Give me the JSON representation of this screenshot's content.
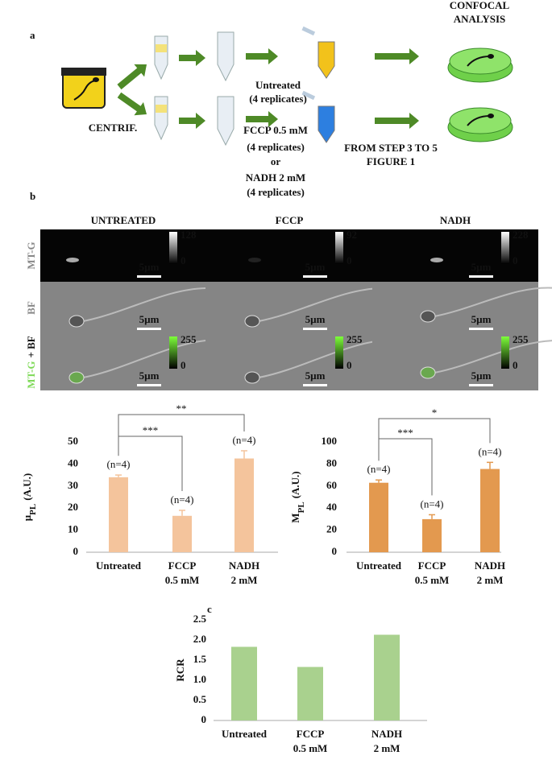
{
  "panel_a": {
    "label": "a",
    "confocal": [
      "CONFOCAL",
      "ANALYSIS"
    ],
    "centrif": "CENTRIF.",
    "untreated": [
      "Untreated",
      "(4 replicates)"
    ],
    "treated": [
      "FCCP 0.5 mM",
      "(4 replicates)",
      "or",
      "NADH 2 mM",
      "(4 replicates)"
    ],
    "steps": [
      "FROM STEP 3 TO 5",
      "FIGURE 1"
    ]
  },
  "panel_b": {
    "label": "b",
    "columns": [
      "UNTREATED",
      "FCCP",
      "NADH"
    ],
    "rows": [
      {
        "label": "MT-G",
        "cells": [
          {
            "max": 128,
            "min": 0,
            "scale": "5µm"
          },
          {
            "max": 92,
            "min": 0,
            "scale": "5µm"
          },
          {
            "max": 228,
            "min": 0,
            "scale": "5µm"
          }
        ]
      },
      {
        "label": "BF",
        "cells": [
          {
            "scale": "5µm"
          },
          {
            "scale": "5µm"
          },
          {
            "scale": "5µm"
          }
        ]
      },
      {
        "label": "MT-G",
        "label_suffix": "+ BF",
        "cells": [
          {
            "max": 255,
            "min": 0,
            "scale": "5µm"
          },
          {
            "max": 255,
            "min": 0,
            "scale": "5µm"
          },
          {
            "max": 255,
            "min": 0,
            "scale": "5µm"
          }
        ]
      }
    ]
  },
  "chart_data": [
    {
      "type": "bar",
      "ylabel": "μ",
      "ylabel_sub": "PL",
      "ylabel_unit": "(A.U.)",
      "categories": [
        [
          "Untreated"
        ],
        [
          "FCCP",
          "0.5 mM"
        ],
        [
          "NADH",
          "2 mM"
        ]
      ],
      "values": [
        34,
        16.5,
        42.5
      ],
      "errors": [
        1,
        2.5,
        3.5
      ],
      "annotations": [
        "(n=4)",
        "(n=4)",
        "(n=4)"
      ],
      "color": "#f4c49c",
      "ylim": [
        0,
        50
      ],
      "yticks": [
        0,
        10,
        20,
        30,
        40,
        50
      ],
      "significance": [
        {
          "from": 0,
          "to": 1,
          "label": "***"
        },
        {
          "from": 0,
          "to": 2,
          "label": "**"
        }
      ]
    },
    {
      "type": "bar",
      "ylabel": "M",
      "ylabel_sub": "PL",
      "ylabel_unit": "(A.U.)",
      "categories": [
        [
          "Untreated"
        ],
        [
          "FCCP",
          "0.5 mM"
        ],
        [
          "NADH",
          "2 mM"
        ]
      ],
      "values": [
        63,
        30,
        75.5
      ],
      "errors": [
        2.5,
        4,
        6
      ],
      "annotations": [
        "(n=4)",
        "(n=4)",
        "(n=4)"
      ],
      "color": "#e3994f",
      "ylim": [
        0,
        100
      ],
      "yticks": [
        0,
        20,
        40,
        60,
        80,
        100
      ],
      "significance": [
        {
          "from": 0,
          "to": 1,
          "label": "***"
        },
        {
          "from": 0,
          "to": 2,
          "label": "*"
        }
      ]
    },
    {
      "type": "bar",
      "panel_label": "c",
      "ylabel": "RCR",
      "categories": [
        [
          "Untreated"
        ],
        [
          "FCCP",
          "0.5 mM"
        ],
        [
          "NADH",
          "2 mM"
        ]
      ],
      "values": [
        1.83,
        1.33,
        2.13
      ],
      "color": "#a9d18e",
      "ylim": [
        0,
        2.5
      ],
      "yticks": [
        0,
        0.5,
        {
          "value": 1,
          "label": "1.0"
        },
        1.5,
        {
          "value": 2,
          "label": "2.0"
        },
        2.5
      ]
    }
  ]
}
